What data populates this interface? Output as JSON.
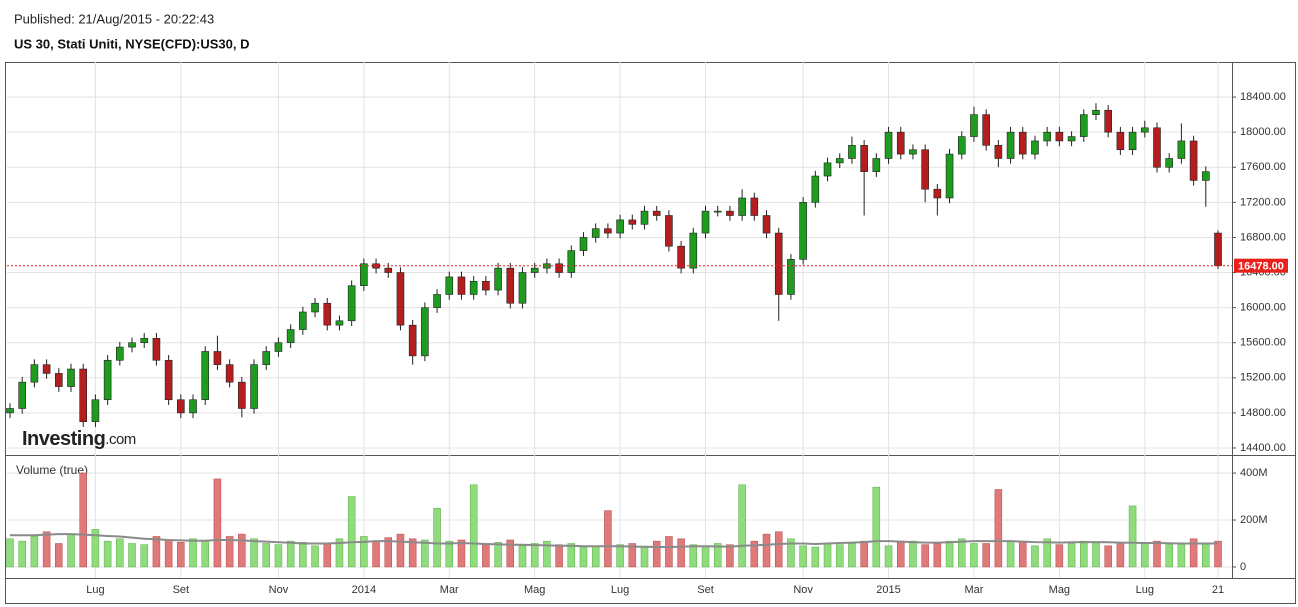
{
  "header": {
    "published": "Published: 21/Aug/2015  -  20:22:43",
    "symbol": "US 30, Stati Uniti, NYSE(CFD):US30, D"
  },
  "chart_data": [
    {
      "type": "candlestick",
      "logo": {
        "brand": "Investing",
        "suffix": ".com"
      },
      "categories": [
        null,
        null,
        null,
        null,
        null,
        null,
        null,
        "Lug",
        null,
        null,
        null,
        null,
        null,
        null,
        "Set",
        null,
        null,
        null,
        null,
        null,
        null,
        null,
        "Nov",
        null,
        null,
        null,
        null,
        null,
        null,
        "2014",
        null,
        null,
        null,
        null,
        null,
        null,
        "Mar",
        null,
        null,
        null,
        null,
        null,
        null,
        "Mag",
        null,
        null,
        null,
        null,
        null,
        null,
        "Lug",
        null,
        null,
        null,
        null,
        null,
        null,
        "Set",
        null,
        null,
        null,
        null,
        null,
        null,
        null,
        "Nov",
        null,
        null,
        null,
        null,
        null,
        null,
        "2015",
        null,
        null,
        null,
        null,
        null,
        null,
        "Mar",
        null,
        null,
        null,
        null,
        null,
        null,
        "Mag",
        null,
        null,
        null,
        null,
        null,
        null,
        "Lug",
        null,
        null,
        null,
        null,
        null,
        "21"
      ],
      "open": [
        14800,
        14850,
        15150,
        15350,
        15250,
        15100,
        15300,
        14700,
        14950,
        15400,
        15550,
        15600,
        15650,
        15400,
        14950,
        14800,
        14950,
        15500,
        15350,
        15150,
        14850,
        15350,
        15500,
        15600,
        15750,
        15950,
        16050,
        15800,
        15850,
        16250,
        16500,
        16450,
        16400,
        15800,
        15450,
        16000,
        16150,
        16350,
        16150,
        16300,
        16200,
        16450,
        16050,
        16400,
        16450,
        16500,
        16400,
        16650,
        16800,
        16900,
        16850,
        17000,
        16950,
        17100,
        17050,
        16700,
        16450,
        16850,
        17100,
        17100,
        17050,
        17250,
        17050,
        16850,
        16150,
        16550,
        17200,
        17500,
        17650,
        17700,
        17850,
        17550,
        17700,
        18000,
        17750,
        17800,
        17350,
        17250,
        17750,
        17950,
        18200,
        17850,
        17700,
        18000,
        17750,
        17900,
        18000,
        17900,
        17950,
        18200,
        18250,
        18000,
        17800,
        18000,
        18050,
        17600,
        17700,
        17900,
        17450,
        16850
      ],
      "high": [
        14910,
        15210,
        15410,
        15410,
        15310,
        15360,
        15360,
        15010,
        15460,
        15610,
        15660,
        15710,
        15710,
        15460,
        15010,
        15010,
        15560,
        15680,
        15410,
        15210,
        15410,
        15560,
        15660,
        15810,
        16010,
        16110,
        16110,
        15910,
        16310,
        16560,
        16560,
        16510,
        16460,
        15860,
        16060,
        16210,
        16410,
        16410,
        16360,
        16360,
        16510,
        16510,
        16460,
        16510,
        16560,
        16560,
        16710,
        16860,
        16960,
        16960,
        17060,
        17060,
        17160,
        17160,
        17110,
        16760,
        16910,
        17160,
        17160,
        17160,
        17350,
        17310,
        17110,
        16910,
        16610,
        17260,
        17560,
        17710,
        17760,
        17950,
        17910,
        17760,
        18060,
        18060,
        17860,
        17860,
        17410,
        17810,
        18010,
        18290,
        18260,
        17910,
        18060,
        18060,
        17960,
        18060,
        18060,
        18010,
        18260,
        18330,
        18310,
        18060,
        18060,
        18130,
        18110,
        17760,
        18100,
        17960,
        17610,
        16880
      ],
      "low": [
        14740,
        14790,
        15090,
        15190,
        15040,
        15040,
        14640,
        14640,
        14890,
        15340,
        15490,
        15540,
        15340,
        14890,
        14740,
        14740,
        14890,
        15290,
        15090,
        14750,
        14790,
        15290,
        15440,
        15540,
        15690,
        15890,
        15740,
        15740,
        15790,
        16190,
        16390,
        16340,
        15740,
        15350,
        15390,
        15940,
        16090,
        16090,
        16090,
        16140,
        16140,
        15990,
        15990,
        16340,
        16390,
        16340,
        16340,
        16590,
        16740,
        16790,
        16790,
        16890,
        16890,
        16990,
        16640,
        16390,
        16390,
        16790,
        17040,
        16990,
        16990,
        16990,
        16790,
        15850,
        16090,
        16490,
        17140,
        17440,
        17590,
        17640,
        17050,
        17490,
        17640,
        17690,
        17690,
        17200,
        17050,
        17190,
        17690,
        17890,
        17790,
        17600,
        17640,
        17690,
        17690,
        17840,
        17840,
        17840,
        17890,
        18140,
        17940,
        17740,
        17740,
        17940,
        17540,
        17540,
        17640,
        17390,
        17150,
        16440
      ],
      "close": [
        14850,
        15150,
        15350,
        15250,
        15100,
        15300,
        14700,
        14950,
        15400,
        15550,
        15600,
        15650,
        15400,
        14950,
        14800,
        14950,
        15500,
        15350,
        15150,
        14850,
        15350,
        15500,
        15600,
        15750,
        15950,
        16050,
        15800,
        15850,
        16250,
        16500,
        16450,
        16400,
        15800,
        15450,
        16000,
        16150,
        16350,
        16150,
        16300,
        16200,
        16450,
        16050,
        16400,
        16450,
        16500,
        16400,
        16650,
        16800,
        16900,
        16850,
        17000,
        16950,
        17100,
        17050,
        16700,
        16450,
        16850,
        17100,
        17100,
        17050,
        17250,
        17050,
        16850,
        16150,
        16550,
        17200,
        17500,
        17650,
        17700,
        17850,
        17550,
        17700,
        18000,
        17750,
        17800,
        17350,
        17250,
        17750,
        17950,
        18200,
        17850,
        17700,
        18000,
        17750,
        17900,
        18000,
        17900,
        17950,
        18200,
        18250,
        18000,
        17800,
        18000,
        18050,
        17600,
        17700,
        17900,
        17450,
        17550,
        16478
      ],
      "up_color": "#1f9b1f",
      "down_color": "#b41e1e",
      "ylim": [
        14320,
        18800
      ],
      "yticks": [
        {
          "value": 14400,
          "label": "14400.00"
        },
        {
          "value": 14800,
          "label": "14800.00"
        },
        {
          "value": 15200,
          "label": "15200.00"
        },
        {
          "value": 15600,
          "label": "15600.00"
        },
        {
          "value": 16000,
          "label": "16000.00"
        },
        {
          "value": 16400,
          "label": "16400.00"
        },
        {
          "value": 16800,
          "label": "16800.00"
        },
        {
          "value": 17200,
          "label": "17200.00"
        },
        {
          "value": 17600,
          "label": "17600.00"
        },
        {
          "value": 18000,
          "label": "18000.00"
        },
        {
          "value": 18400,
          "label": "18400.00"
        }
      ],
      "last_price": {
        "value": 16478,
        "label": "16478.00",
        "color": "#e8211d"
      },
      "grid": true
    },
    {
      "type": "bar",
      "title": "Volume (true)",
      "values": [
        120,
        110,
        130,
        150,
        100,
        140,
        400,
        160,
        110,
        120,
        100,
        95,
        130,
        115,
        105,
        120,
        110,
        375,
        130,
        140,
        120,
        100,
        95,
        110,
        105,
        90,
        100,
        120,
        300,
        130,
        110,
        125,
        140,
        120,
        115,
        250,
        110,
        115,
        350,
        95,
        105,
        115,
        90,
        100,
        110,
        95,
        100,
        85,
        90,
        240,
        95,
        100,
        85,
        110,
        130,
        120,
        95,
        90,
        100,
        95,
        350,
        110,
        140,
        150,
        120,
        90,
        85,
        100,
        95,
        100,
        110,
        340,
        90,
        105,
        110,
        95,
        100,
        110,
        120,
        100,
        100,
        330,
        110,
        105,
        90,
        120,
        95,
        100,
        110,
        105,
        90,
        105,
        260,
        105,
        110,
        95,
        100,
        120,
        100,
        110
      ],
      "average": [
        135,
        135,
        135,
        138,
        140,
        140,
        138,
        135,
        132,
        130,
        125,
        120,
        118,
        115,
        113,
        112,
        112,
        115,
        115,
        113,
        110,
        108,
        105,
        103,
        100,
        100,
        100,
        102,
        105,
        107,
        110,
        110,
        108,
        105,
        103,
        100,
        100,
        102,
        100,
        98,
        96,
        95,
        95,
        93,
        92,
        90,
        90,
        88,
        88,
        88,
        88,
        87,
        86,
        85,
        85,
        86,
        88,
        88,
        87,
        86,
        90,
        92,
        95,
        98,
        100,
        100,
        98,
        100,
        102,
        104,
        106,
        110,
        110,
        108,
        106,
        104,
        104,
        105,
        108,
        110,
        110,
        110,
        110,
        108,
        106,
        105,
        104,
        105,
        106,
        106,
        105,
        104,
        103,
        102,
        102,
        101,
        100,
        100,
        100,
        100
      ],
      "up_color": "#8fdc7c",
      "down_color": "#e07a7a",
      "average_color": "#8a8a8a",
      "ylim": [
        -47,
        477
      ],
      "yticks": [
        0,
        {
          "value": 200,
          "label": "200M"
        },
        {
          "value": 400,
          "label": "400M"
        }
      ]
    }
  ]
}
